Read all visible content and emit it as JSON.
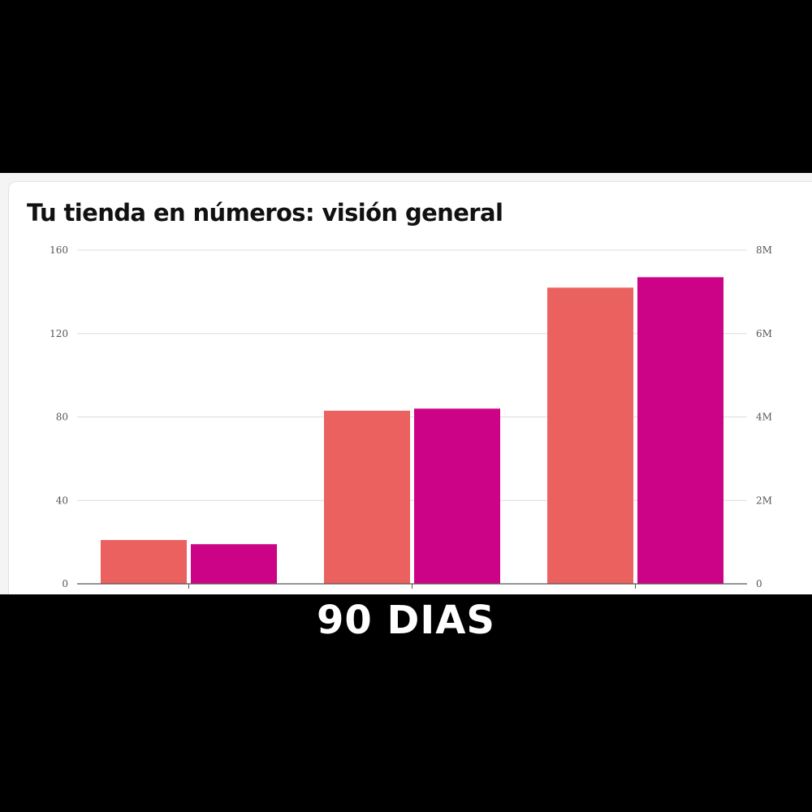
{
  "colors": {
    "series_1": "#eb615f",
    "series_2": "#cc0386",
    "gridline": "#dcdcdc",
    "axis": "#555555",
    "tick_label": "#555555",
    "background_frame": "#000000",
    "card": "#ffffff"
  },
  "caption": "90 DIAS",
  "chart_data": {
    "type": "bar",
    "title": "Tu tienda en números: visión general",
    "categories": [
      "",
      "",
      ""
    ],
    "series": [
      {
        "values": [
          21,
          83,
          142
        ],
        "axis": "left",
        "color": "#eb615f"
      },
      {
        "values": [
          950000,
          4200000,
          7350000
        ],
        "axis": "right",
        "color": "#cc0386"
      }
    ],
    "y_left": {
      "ylim": [
        0,
        160
      ],
      "ticks": [
        0,
        40,
        80,
        120,
        160
      ],
      "tick_labels": [
        "0",
        "40",
        "80",
        "120",
        "160"
      ]
    },
    "y_right": {
      "ylim": [
        0,
        8000000
      ],
      "ticks": [
        0,
        2000000,
        4000000,
        6000000,
        8000000
      ],
      "tick_labels": [
        "0",
        "2M",
        "4M",
        "6M",
        "8M"
      ]
    },
    "grid": true,
    "legend": "none"
  }
}
